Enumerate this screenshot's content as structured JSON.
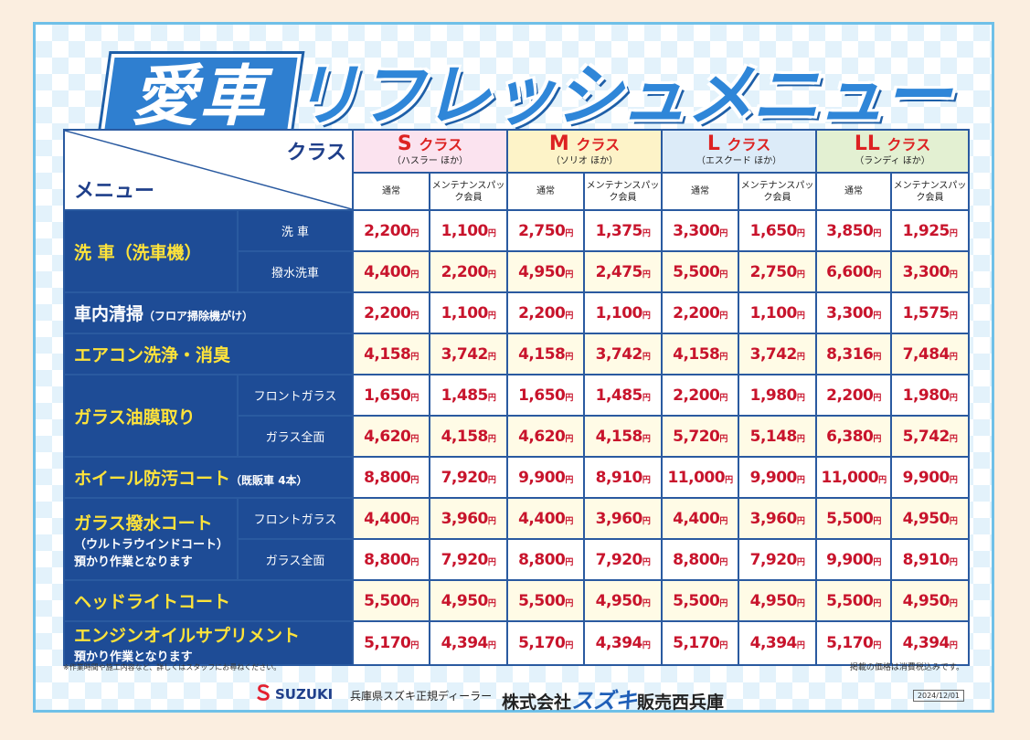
{
  "title": {
    "ai": "愛車",
    "rest": "リフレッシュメニュー"
  },
  "header": {
    "class_label": "クラス",
    "menu_label": "メニュー",
    "sub_normal": "通常",
    "sub_member": "メンテナンスパック会員"
  },
  "classes": [
    {
      "letter": "S",
      "label": "クラス",
      "sub": "（ハスラー ほか）"
    },
    {
      "letter": "M",
      "label": "クラス",
      "sub": "（ソリオ ほか）"
    },
    {
      "letter": "L",
      "label": "クラス",
      "sub": "（エスクード ほか）"
    },
    {
      "letter": "LL",
      "label": "クラス",
      "sub": "（ランディ ほか）"
    }
  ],
  "yen": "円",
  "rows": [
    {
      "menu": "洗 車（洗車機）",
      "sub": "洗 車",
      "prices": [
        "2,200",
        "1,100",
        "2,750",
        "1,375",
        "3,300",
        "1,650",
        "3,850",
        "1,925"
      ]
    },
    {
      "sub": "撥水洗車",
      "prices": [
        "4,400",
        "2,200",
        "4,950",
        "2,475",
        "5,500",
        "2,750",
        "6,600",
        "3,300"
      ]
    },
    {
      "menu": "車内清掃",
      "menu_small": "（フロア掃除機がけ）",
      "prices": [
        "2,200",
        "1,100",
        "2,200",
        "1,100",
        "2,200",
        "1,100",
        "3,300",
        "1,575"
      ]
    },
    {
      "menu": "エアコン洗浄・消臭",
      "prices": [
        "4,158",
        "3,742",
        "4,158",
        "3,742",
        "4,158",
        "3,742",
        "8,316",
        "7,484"
      ]
    },
    {
      "menu": "ガラス油膜取り",
      "sub": "フロントガラス",
      "prices": [
        "1,650",
        "1,485",
        "1,650",
        "1,485",
        "2,200",
        "1,980",
        "2,200",
        "1,980"
      ]
    },
    {
      "sub": "ガラス全面",
      "prices": [
        "4,620",
        "4,158",
        "4,620",
        "4,158",
        "5,720",
        "5,148",
        "6,380",
        "5,742"
      ]
    },
    {
      "menu": "ホイール防汚コート",
      "menu_small": "（既販車 4本）",
      "prices": [
        "8,800",
        "7,920",
        "9,900",
        "8,910",
        "11,000",
        "9,900",
        "11,000",
        "9,900"
      ]
    },
    {
      "menu": "ガラス撥水コート",
      "menu_note": "（ウルトラウインドコート）預かり作業となります",
      "sub": "フロントガラス",
      "prices": [
        "4,400",
        "3,960",
        "4,400",
        "3,960",
        "4,400",
        "3,960",
        "5,500",
        "4,950"
      ]
    },
    {
      "sub": "ガラス全面",
      "prices": [
        "8,800",
        "7,920",
        "8,800",
        "7,920",
        "8,800",
        "7,920",
        "9,900",
        "8,910"
      ]
    },
    {
      "menu": "ヘッドライトコート",
      "prices": [
        "5,500",
        "4,950",
        "5,500",
        "4,950",
        "5,500",
        "4,950",
        "5,500",
        "4,950"
      ]
    },
    {
      "menu": "エンジンオイルサプリメント",
      "menu_note": "預かり作業となります",
      "prices": [
        "5,170",
        "4,394",
        "5,170",
        "4,394",
        "5,170",
        "4,394",
        "5,170",
        "4,394"
      ]
    }
  ],
  "footer": {
    "note_left": "※作業時間や施工内容など、詳しくはスタッフにお尋ねください。",
    "note_right": "掲載の価格は消費税込みです。",
    "brand": "SUZUKI",
    "dealer": "兵庫県スズキ正規ディーラー",
    "company_pre": "株式会社",
    "company_mid": "スズキ",
    "company_post": "販売西兵庫",
    "date": "2024/12/01"
  }
}
